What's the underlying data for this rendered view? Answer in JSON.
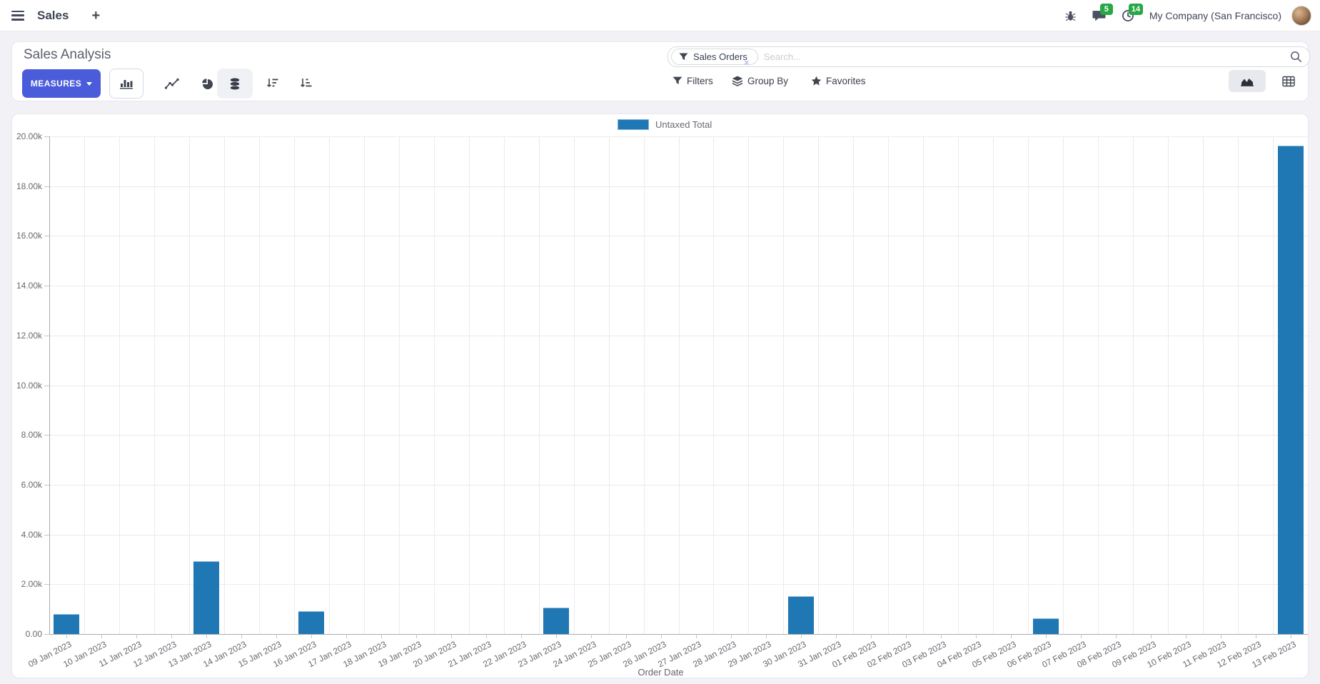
{
  "navbar": {
    "app_name": "Sales",
    "message_count": "5",
    "activity_count": "14",
    "company": "My Company (San Francisco)"
  },
  "control_panel": {
    "title": "Sales Analysis",
    "measures_label": "MEASURES",
    "search": {
      "facet_label": "Sales Orders",
      "remove_glyph": "×",
      "placeholder": "Search..."
    },
    "filters_label": "Filters",
    "group_by_label": "Group By",
    "favorites_label": "Favorites"
  },
  "chart_data": {
    "type": "bar",
    "title": "",
    "legend_label": "Untaxed Total",
    "legend_position": "top",
    "xlabel": "Order Date",
    "ylabel": "",
    "ylim": [
      0,
      20000
    ],
    "y_tick_step": 2000,
    "y_ticks": [
      "0.00",
      "2.00k",
      "4.00k",
      "6.00k",
      "8.00k",
      "10.00k",
      "12.00k",
      "14.00k",
      "16.00k",
      "18.00k",
      "20.00k"
    ],
    "grid": true,
    "bar_color": "#1f77b4",
    "categories": [
      "09 Jan 2023",
      "10 Jan 2023",
      "11 Jan 2023",
      "12 Jan 2023",
      "13 Jan 2023",
      "14 Jan 2023",
      "15 Jan 2023",
      "16 Jan 2023",
      "17 Jan 2023",
      "18 Jan 2023",
      "19 Jan 2023",
      "20 Jan 2023",
      "21 Jan 2023",
      "22 Jan 2023",
      "23 Jan 2023",
      "24 Jan 2023",
      "25 Jan 2023",
      "26 Jan 2023",
      "27 Jan 2023",
      "28 Jan 2023",
      "29 Jan 2023",
      "30 Jan 2023",
      "31 Jan 2023",
      "01 Feb 2023",
      "02 Feb 2023",
      "03 Feb 2023",
      "04 Feb 2023",
      "05 Feb 2023",
      "06 Feb 2023",
      "07 Feb 2023",
      "08 Feb 2023",
      "09 Feb 2023",
      "10 Feb 2023",
      "11 Feb 2023",
      "12 Feb 2023",
      "13 Feb 2023"
    ],
    "series": [
      {
        "name": "Untaxed Total",
        "values": [
          790,
          0,
          0,
          0,
          2920,
          0,
          0,
          930,
          0,
          0,
          0,
          0,
          0,
          0,
          1050,
          0,
          0,
          0,
          0,
          0,
          0,
          1510,
          0,
          0,
          0,
          0,
          0,
          0,
          620,
          0,
          0,
          0,
          0,
          0,
          0,
          19640
        ]
      }
    ]
  },
  "colors": {
    "accent": "#4b5cdb",
    "bar": "#1f77b4",
    "badge_green": "#28a745",
    "card_bg": "#ffffff",
    "page_bg": "#f2f2f6"
  },
  "icons": {
    "menu-icon": "hamburger bars",
    "plus-icon": "+",
    "bug-icon": "beetle",
    "chat-icon": "speech bubble",
    "clock-icon": "clock",
    "filter-icon": "funnel",
    "layers-icon": "stacked layers",
    "star-icon": "★",
    "search-icon": "magnifier",
    "close-icon": "×",
    "caret-down-icon": "▼",
    "bar-chart-icon": "bars",
    "line-chart-icon": "polyline",
    "pie-chart-icon": "pie with slice",
    "stacked-icon": "database cylinder",
    "sort-desc-icon": "arrow down + decreasing lines",
    "sort-asc-icon": "arrow down + increasing lines",
    "area-chart-icon": "filled area",
    "pivot-icon": "grid table"
  }
}
